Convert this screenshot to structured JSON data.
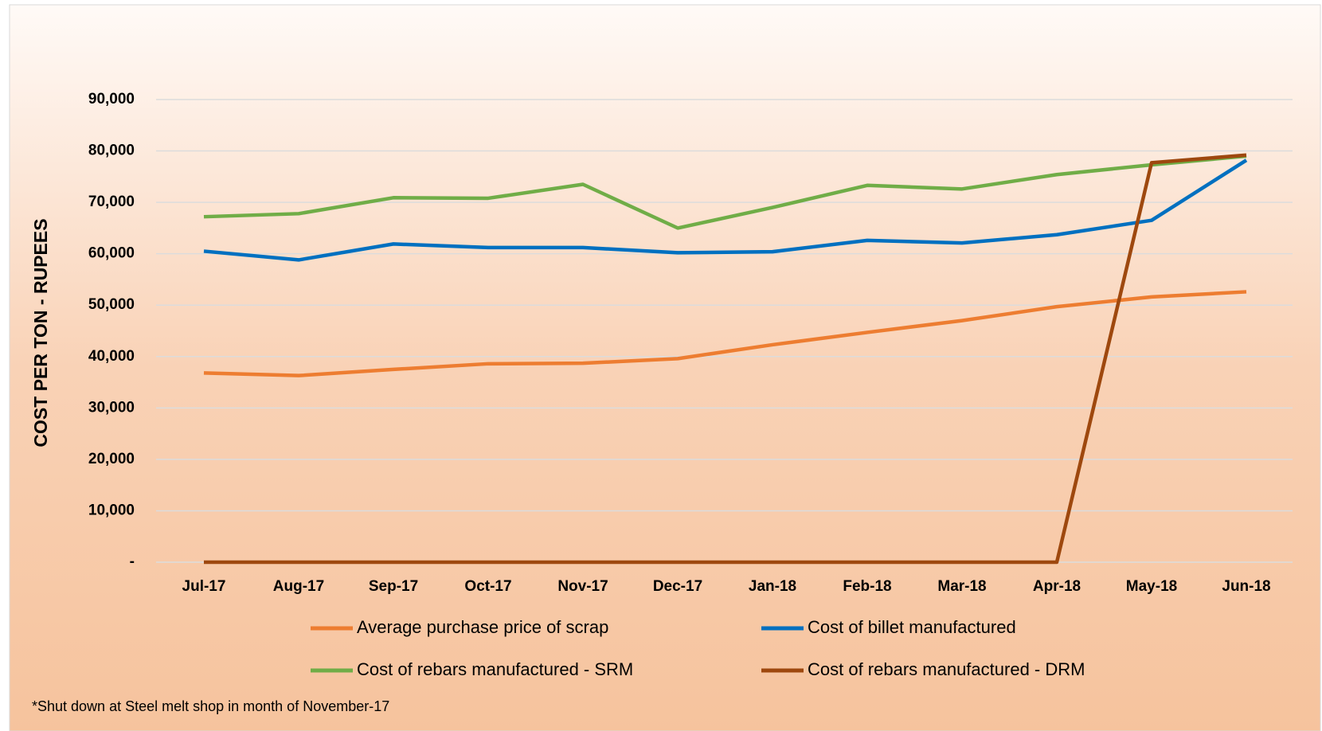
{
  "chart_data": {
    "type": "line",
    "y_axis_label": "COST PER TON - RUPEES",
    "footnote": "*Shut down at Steel melt shop in month of November-17",
    "categories": [
      "Jul-17",
      "Aug-17",
      "Sep-17",
      "Oct-17",
      "Nov-17",
      "Dec-17",
      "Jan-18",
      "Feb-18",
      "Mar-18",
      "Apr-18",
      "May-18",
      "Jun-18"
    ],
    "series": [
      {
        "name": "Average purchase price of scrap",
        "color": "#ED7D31",
        "values": [
          36800,
          36300,
          37500,
          38600,
          38700,
          39600,
          42300,
          44700,
          47000,
          49700,
          51600,
          52600
        ]
      },
      {
        "name": "Cost of billet manufactured",
        "color": "#0070C0",
        "values": [
          60500,
          58800,
          61900,
          61200,
          61200,
          60200,
          60400,
          62600,
          62100,
          63700,
          66500,
          78200
        ]
      },
      {
        "name": "Cost of rebars manufactured - SRM",
        "color": "#70AD47",
        "values": [
          67200,
          67800,
          70900,
          70800,
          73500,
          65000,
          69000,
          73300,
          72600,
          75400,
          77300,
          79000
        ]
      },
      {
        "name": "Cost of rebars manufactured - DRM",
        "color": "#9E480E",
        "values": [
          0,
          0,
          0,
          0,
          0,
          0,
          0,
          0,
          0,
          0,
          77700,
          79200
        ]
      }
    ],
    "ylim": [
      0,
      90000
    ],
    "yticks": [
      {
        "value": 0,
        "label": "-"
      },
      {
        "value": 10000,
        "label": "10,000"
      },
      {
        "value": 20000,
        "label": "20,000"
      },
      {
        "value": 30000,
        "label": "30,000"
      },
      {
        "value": 40000,
        "label": "40,000"
      },
      {
        "value": 50000,
        "label": "50,000"
      },
      {
        "value": 60000,
        "label": "60,000"
      },
      {
        "value": 70000,
        "label": "70,000"
      },
      {
        "value": 80000,
        "label": "80,000"
      },
      {
        "value": 90000,
        "label": "90,000"
      }
    ],
    "grid": true,
    "legend": "bottom"
  }
}
